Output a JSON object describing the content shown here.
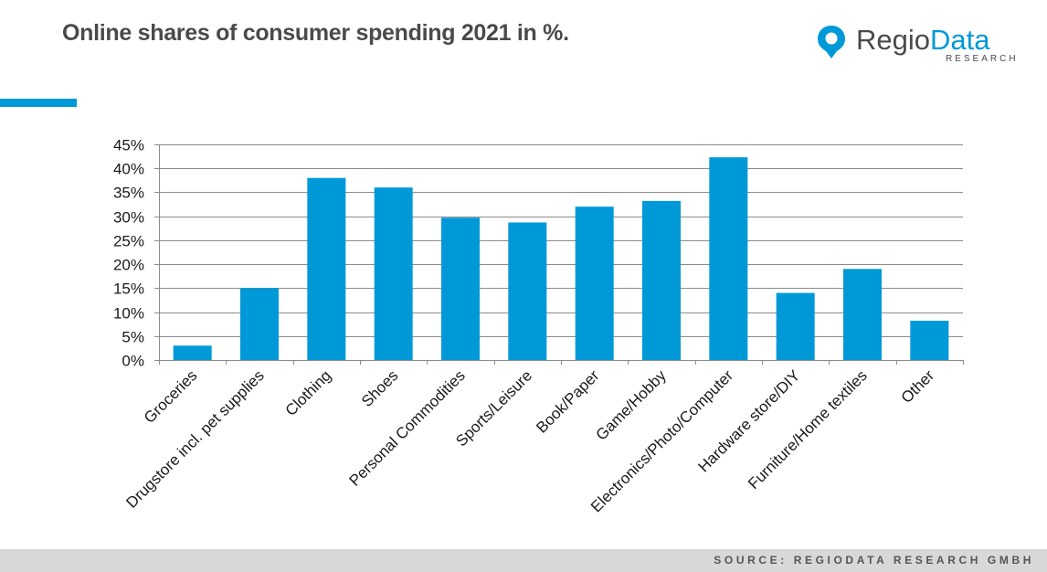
{
  "title": "Online shares of consumer spending 2021 in %.",
  "logo": {
    "word_part1": "Regio",
    "word_part2": "Data",
    "subtitle": "RESEARCH",
    "icon": "map-pin-icon"
  },
  "footer": {
    "source": "SOURCE: REGIODATA RESEARCH GMBH"
  },
  "colors": {
    "accent": "#0099d8",
    "bar": "#0099d8",
    "title": "#4a4a4a",
    "grid": "#8c8c8c",
    "footer_bg": "#d8d8d8"
  },
  "chart_data": {
    "type": "bar",
    "title": "Online shares of consumer spending 2021 in %.",
    "xlabel": "",
    "ylabel": "",
    "ylim": [
      0,
      45
    ],
    "yticks": [
      "0%",
      "5%",
      "10%",
      "15%",
      "20%",
      "25%",
      "30%",
      "35%",
      "40%",
      "45%"
    ],
    "grid": true,
    "categories": [
      "Groceries",
      "Drugstore incl. pet supplies",
      "Clothing",
      "Shoes",
      "Personal Commodities",
      "Sports/Leisure",
      "Book/Paper",
      "Game/Hobby",
      "Electronics/Photo/Computer",
      "Hardware store/DIY",
      "Furniture/Home textiles",
      "Other"
    ],
    "values": [
      3.0,
      15.0,
      38.0,
      36.0,
      29.7,
      28.7,
      32.0,
      33.2,
      42.3,
      14.0,
      19.0,
      8.2
    ]
  }
}
